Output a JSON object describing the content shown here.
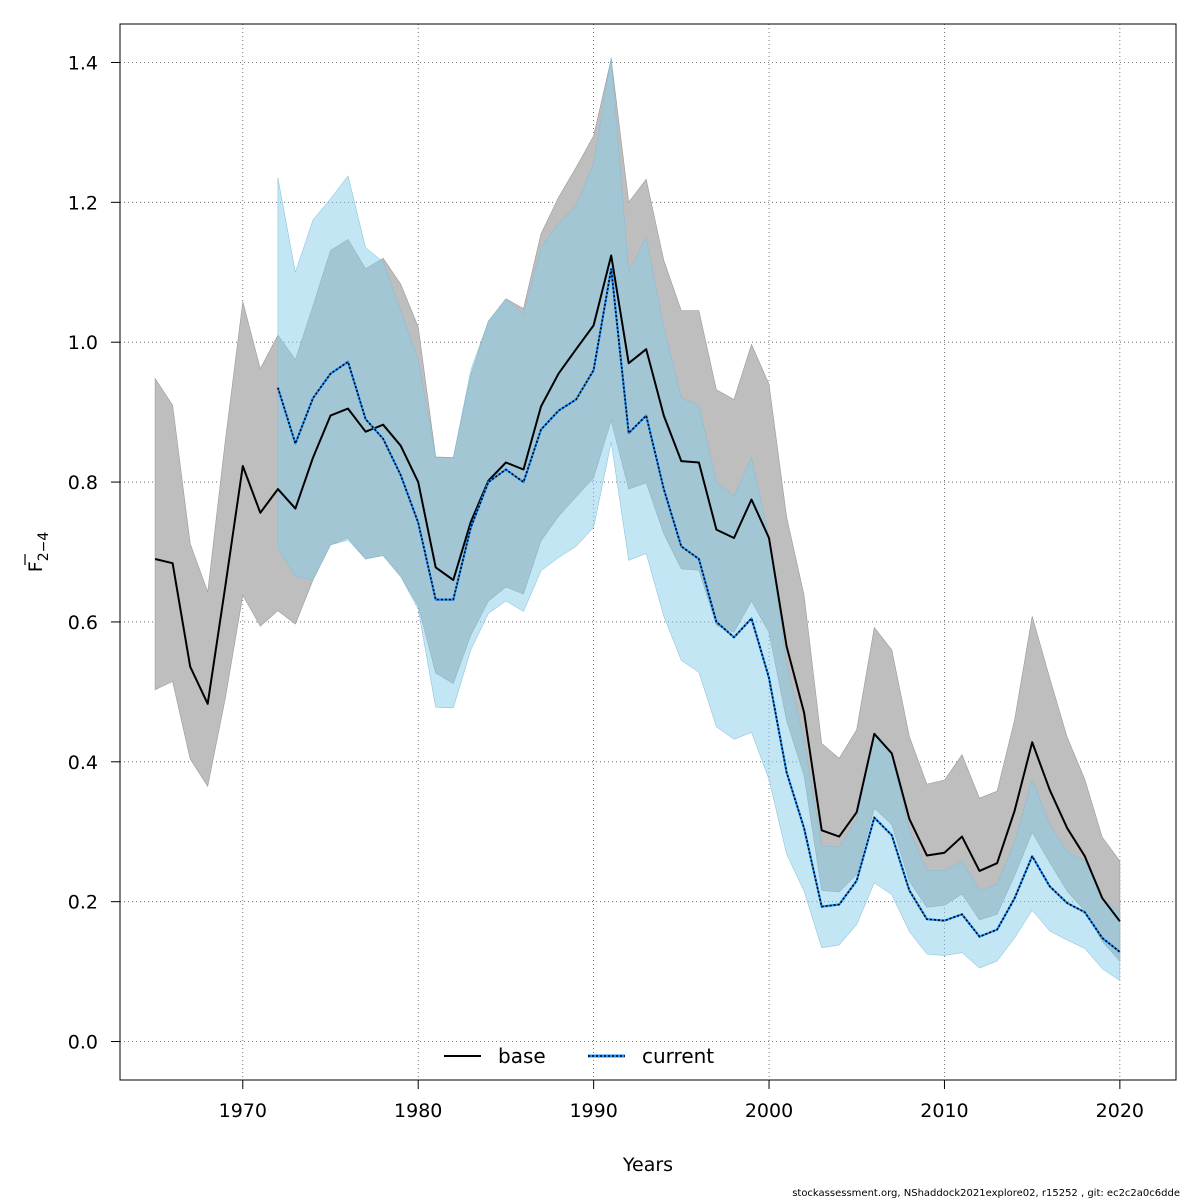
{
  "chart_data": {
    "type": "line",
    "xlabel": "Years",
    "ylabel_main": "F",
    "ylabel_sub": "2−4",
    "xlim": [
      1963,
      2023.2
    ],
    "ylim": [
      -0.055,
      1.455
    ],
    "xticks": [
      1970,
      1980,
      1990,
      2000,
      2010,
      2020
    ],
    "yticks": [
      0.0,
      0.2,
      0.4,
      0.6,
      0.8,
      1.0,
      1.2,
      1.4
    ],
    "ytick_labels": [
      "0.0",
      "0.2",
      "0.4",
      "0.6",
      "0.8",
      "1.0",
      "1.2",
      "1.4"
    ],
    "grid": true,
    "legend_position": "bottom-center",
    "footer": "stockassessment.org, NShaddock2021explore02, r15252 , git: ec2c2a0c6dde",
    "colors": {
      "base_band": "#bebebe",
      "current_band": "#87ceeb",
      "base_line": "#000000",
      "current_line": "#000000",
      "current_line_highlight": "#1e90ff"
    },
    "series": [
      {
        "name": "base",
        "style": "solid",
        "x": [
          1965,
          1966,
          1967,
          1968,
          1969,
          1970,
          1971,
          1972,
          1973,
          1974,
          1975,
          1976,
          1977,
          1978,
          1979,
          1980,
          1981,
          1982,
          1983,
          1984,
          1985,
          1986,
          1987,
          1988,
          1989,
          1990,
          1991,
          1992,
          1993,
          1994,
          1995,
          1996,
          1997,
          1998,
          1999,
          2000,
          2001,
          2002,
          2003,
          2004,
          2005,
          2006,
          2007,
          2008,
          2009,
          2010,
          2011,
          2012,
          2013,
          2014,
          2015,
          2016,
          2017,
          2018,
          2019,
          2020
        ],
        "y": [
          0.69,
          0.684,
          0.536,
          0.483,
          0.65,
          0.823,
          0.756,
          0.79,
          0.762,
          0.835,
          0.895,
          0.905,
          0.872,
          0.882,
          0.852,
          0.8,
          0.678,
          0.66,
          0.743,
          0.802,
          0.828,
          0.818,
          0.908,
          0.955,
          0.99,
          1.024,
          1.124,
          0.97,
          0.99,
          0.895,
          0.83,
          0.828,
          0.732,
          0.72,
          0.775,
          0.72,
          0.565,
          0.47,
          0.302,
          0.293,
          0.328,
          0.44,
          0.412,
          0.318,
          0.266,
          0.27,
          0.293,
          0.244,
          0.255,
          0.33,
          0.428,
          0.36,
          0.305,
          0.265,
          0.205,
          0.172
        ],
        "lower": [
          0.503,
          0.515,
          0.404,
          0.365,
          0.49,
          0.638,
          0.594,
          0.616,
          0.597,
          0.66,
          0.71,
          0.72,
          0.69,
          0.695,
          0.665,
          0.623,
          0.527,
          0.512,
          0.581,
          0.63,
          0.65,
          0.64,
          0.716,
          0.751,
          0.779,
          0.806,
          0.888,
          0.79,
          0.799,
          0.726,
          0.676,
          0.674,
          0.595,
          0.585,
          0.63,
          0.585,
          0.459,
          0.38,
          0.216,
          0.214,
          0.239,
          0.334,
          0.31,
          0.229,
          0.192,
          0.195,
          0.211,
          0.174,
          0.182,
          0.237,
          0.299,
          0.256,
          0.215,
          0.187,
          0.143,
          0.115
        ],
        "upper": [
          0.948,
          0.91,
          0.712,
          0.643,
          0.858,
          1.058,
          0.962,
          1.01,
          0.975,
          1.052,
          1.131,
          1.147,
          1.105,
          1.12,
          1.083,
          1.022,
          0.836,
          0.835,
          0.953,
          1.03,
          1.062,
          1.048,
          1.155,
          1.207,
          1.25,
          1.295,
          1.405,
          1.2,
          1.233,
          1.117,
          1.045,
          1.045,
          0.932,
          0.918,
          0.997,
          0.94,
          0.75,
          0.638,
          0.426,
          0.405,
          0.446,
          0.592,
          0.56,
          0.436,
          0.368,
          0.374,
          0.41,
          0.348,
          0.358,
          0.46,
          0.608,
          0.52,
          0.435,
          0.375,
          0.292,
          0.258
        ]
      },
      {
        "name": "current",
        "style": "dotted",
        "x": [
          1972,
          1973,
          1974,
          1975,
          1976,
          1977,
          1978,
          1979,
          1980,
          1981,
          1982,
          1983,
          1984,
          1985,
          1986,
          1987,
          1988,
          1989,
          1990,
          1991,
          1992,
          1993,
          1994,
          1995,
          1996,
          1997,
          1998,
          1999,
          2000,
          2001,
          2002,
          2003,
          2004,
          2005,
          2006,
          2007,
          2008,
          2009,
          2010,
          2011,
          2012,
          2013,
          2014,
          2015,
          2016,
          2017,
          2018,
          2019,
          2020
        ],
        "y": [
          0.935,
          0.855,
          0.92,
          0.955,
          0.972,
          0.89,
          0.862,
          0.81,
          0.742,
          0.632,
          0.632,
          0.735,
          0.8,
          0.818,
          0.8,
          0.875,
          0.902,
          0.918,
          0.96,
          1.105,
          0.87,
          0.895,
          0.79,
          0.708,
          0.69,
          0.6,
          0.578,
          0.605,
          0.52,
          0.385,
          0.305,
          0.193,
          0.196,
          0.23,
          0.32,
          0.295,
          0.216,
          0.175,
          0.173,
          0.182,
          0.15,
          0.16,
          0.205,
          0.265,
          0.222,
          0.198,
          0.185,
          0.148,
          0.128
        ],
        "lower": [
          0.705,
          0.665,
          0.66,
          0.71,
          0.717,
          0.69,
          0.695,
          0.665,
          0.618,
          0.478,
          0.477,
          0.56,
          0.612,
          0.63,
          0.615,
          0.673,
          0.692,
          0.708,
          0.735,
          0.857,
          0.688,
          0.698,
          0.608,
          0.545,
          0.528,
          0.45,
          0.432,
          0.442,
          0.375,
          0.268,
          0.215,
          0.134,
          0.138,
          0.167,
          0.227,
          0.21,
          0.157,
          0.125,
          0.123,
          0.127,
          0.105,
          0.115,
          0.148,
          0.188,
          0.158,
          0.145,
          0.133,
          0.104,
          0.087
        ],
        "upper": [
          1.235,
          1.1,
          1.175,
          1.205,
          1.238,
          1.135,
          1.115,
          1.045,
          0.975,
          0.835,
          0.835,
          0.96,
          1.03,
          1.062,
          1.04,
          1.135,
          1.17,
          1.195,
          1.255,
          1.408,
          1.1,
          1.15,
          1.02,
          0.92,
          0.91,
          0.8,
          0.78,
          0.835,
          0.72,
          0.54,
          0.43,
          0.28,
          0.278,
          0.318,
          0.442,
          0.41,
          0.302,
          0.245,
          0.244,
          0.258,
          0.216,
          0.225,
          0.285,
          0.375,
          0.31,
          0.272,
          0.258,
          0.205,
          0.185
        ]
      }
    ]
  }
}
